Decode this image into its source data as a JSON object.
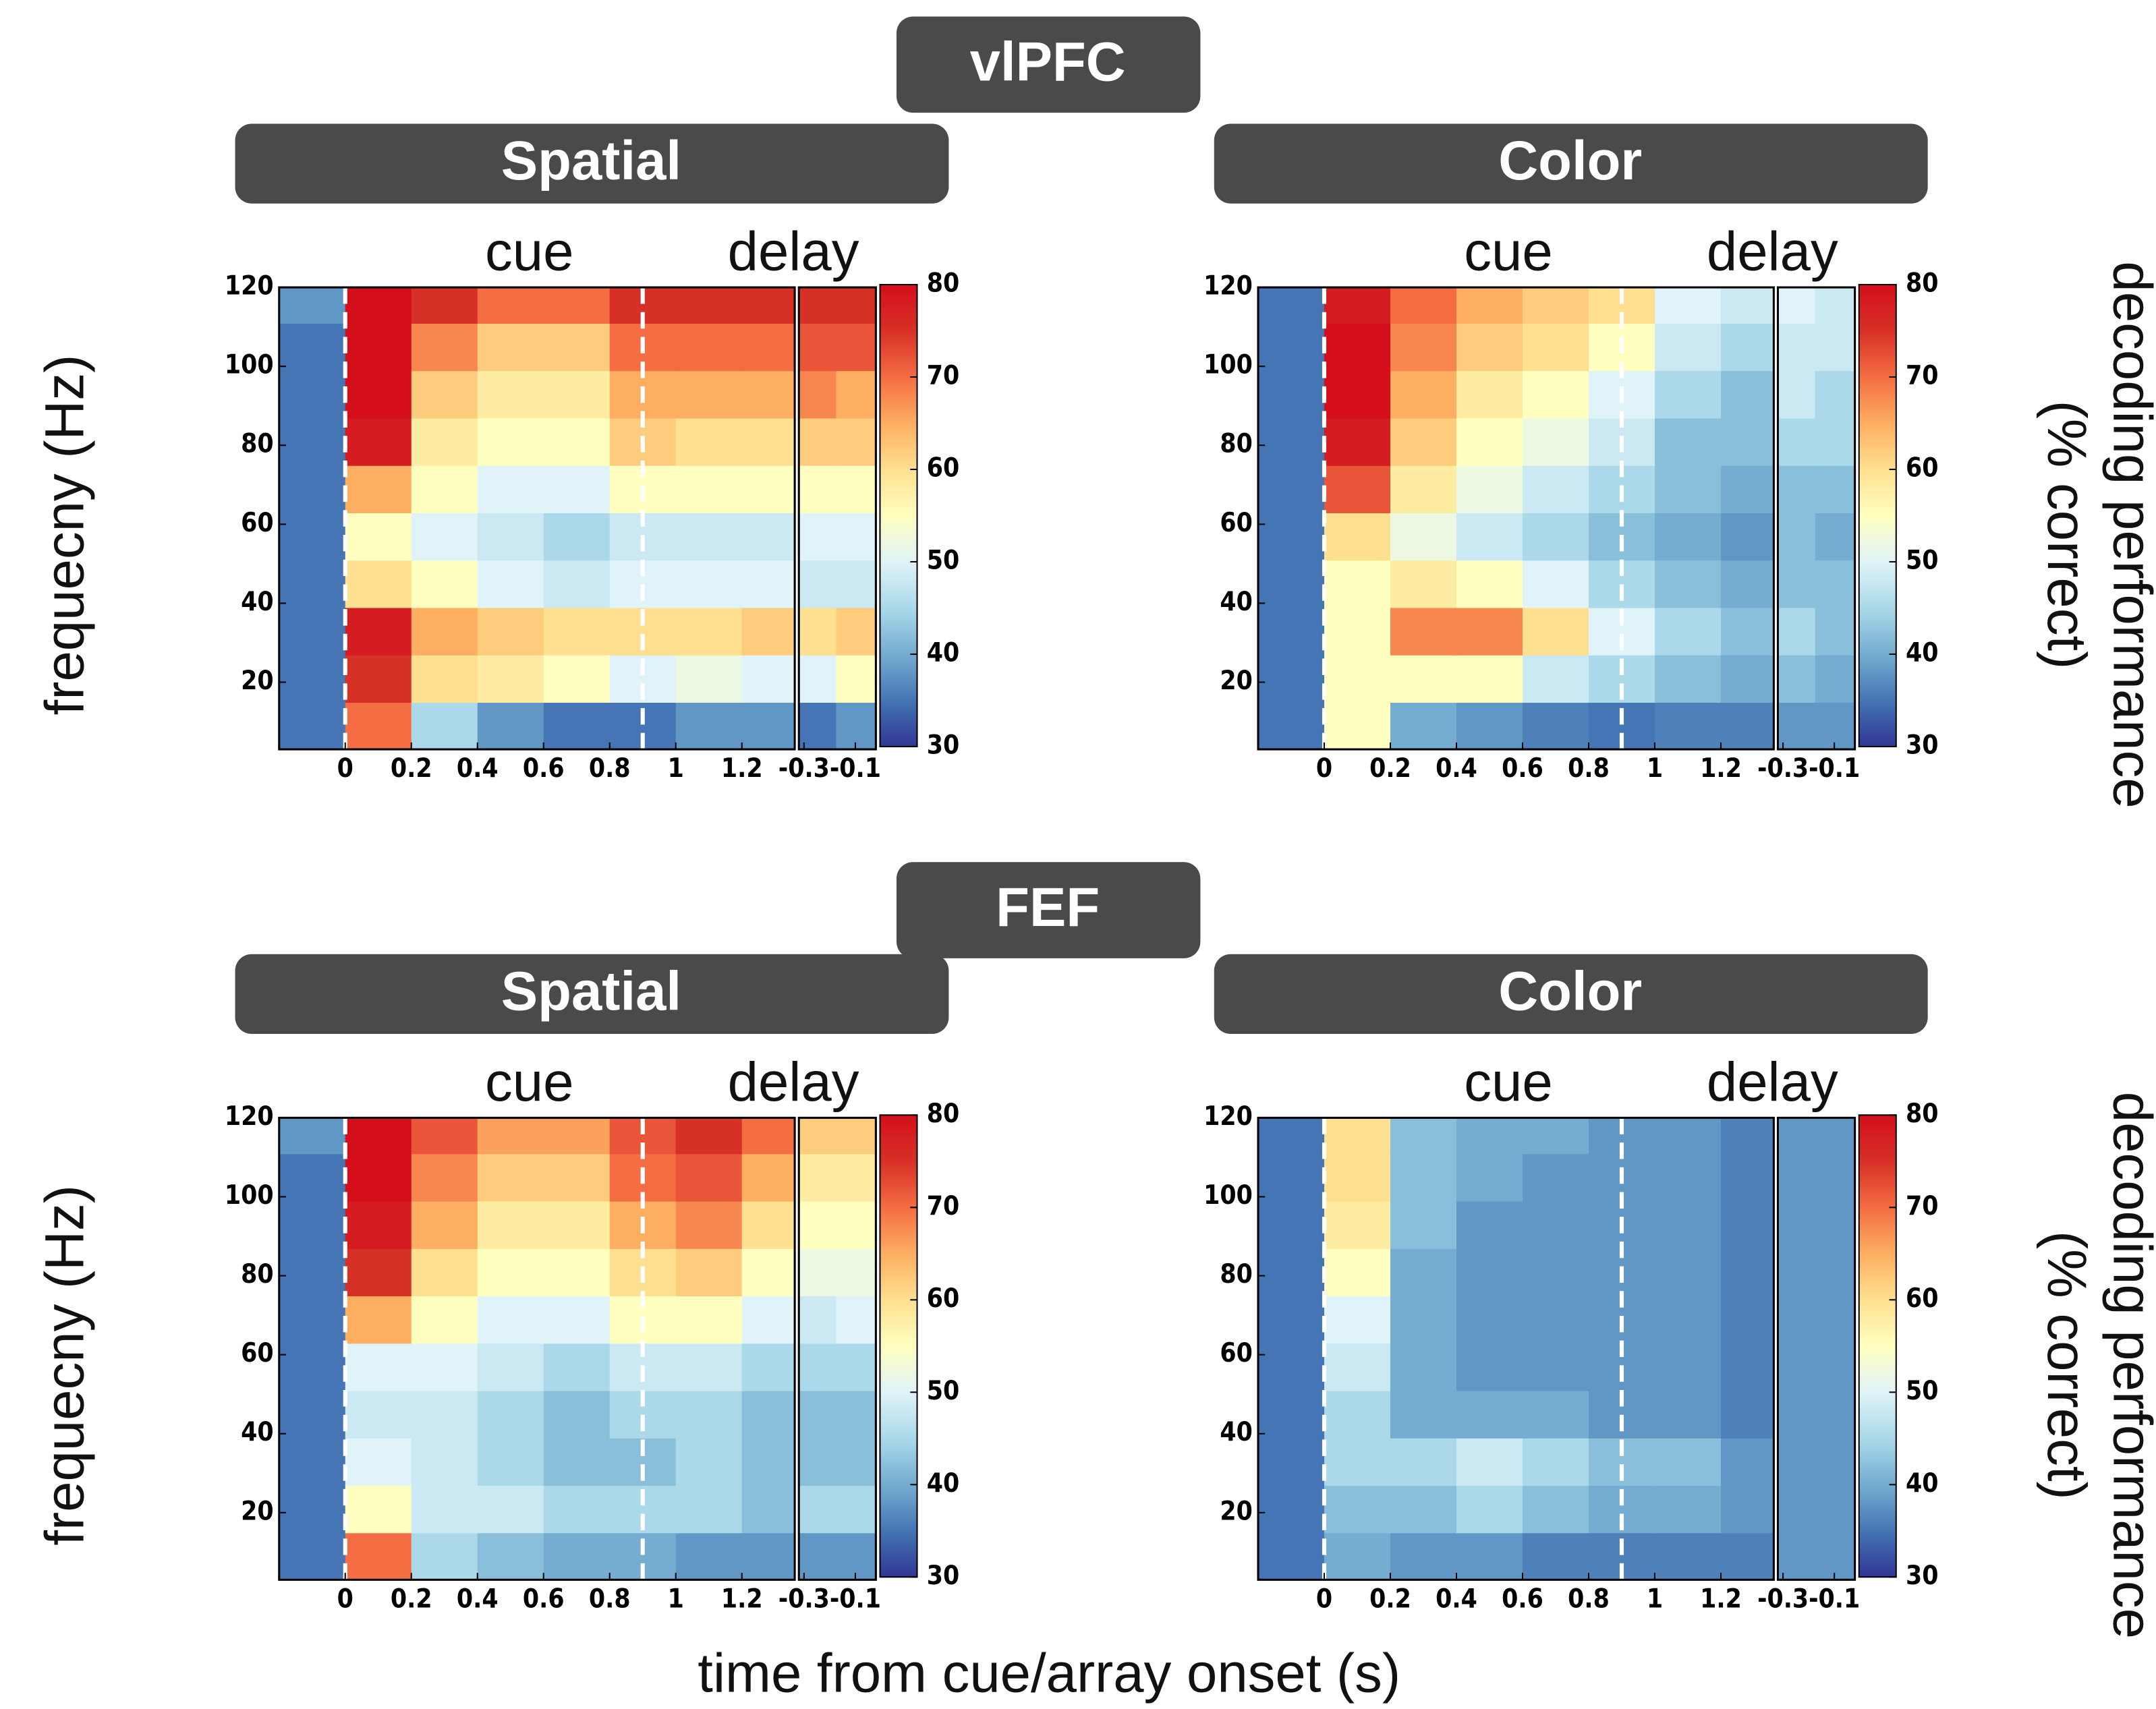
{
  "groups": [
    "vlPFC",
    "FEF"
  ],
  "xlabel": "time from cue/array onset (s)",
  "chart_data": [
    {
      "type": "heatmap",
      "title": "Spatial",
      "ylabel": "frequecny (Hz)",
      "annotations": [
        "cue",
        "delay"
      ],
      "x": [
        -0.1,
        0.1,
        0.3,
        0.5,
        0.7,
        0.9,
        1.1,
        1.3
      ],
      "x2": [
        -0.25,
        -0.1
      ],
      "y": [
        9,
        21,
        33,
        45,
        57,
        69,
        81,
        93,
        105,
        117
      ],
      "z": [
        [
          35,
          70,
          45,
          38,
          35,
          35,
          38,
          38
        ],
        [
          35,
          75,
          60,
          58,
          55,
          50,
          52,
          50
        ],
        [
          35,
          78,
          65,
          62,
          60,
          60,
          60,
          62
        ],
        [
          35,
          60,
          55,
          50,
          48,
          50,
          50,
          50
        ],
        [
          35,
          55,
          50,
          48,
          45,
          48,
          48,
          48
        ],
        [
          35,
          65,
          55,
          50,
          50,
          55,
          55,
          55
        ],
        [
          35,
          78,
          58,
          55,
          55,
          62,
          60,
          60
        ],
        [
          35,
          80,
          62,
          58,
          58,
          65,
          65,
          65
        ],
        [
          35,
          80,
          68,
          62,
          62,
          70,
          70,
          70
        ],
        [
          38,
          80,
          75,
          70,
          70,
          75,
          75,
          75
        ]
      ],
      "z2": [
        [
          35,
          38
        ],
        [
          50,
          55
        ],
        [
          60,
          62
        ],
        [
          48,
          48
        ],
        [
          50,
          50
        ],
        [
          55,
          55
        ],
        [
          62,
          62
        ],
        [
          68,
          65
        ],
        [
          72,
          72
        ],
        [
          75,
          75
        ]
      ],
      "xlim": [
        -0.2,
        1.36
      ],
      "xticks": [
        0,
        0.2,
        0.4,
        0.6,
        0.8,
        1,
        1.2
      ],
      "x2lim": [
        -0.32,
        -0.02
      ],
      "x2ticks": [
        -0.3,
        -0.1
      ],
      "ylim": [
        3,
        120
      ],
      "yticks": [
        20,
        40,
        60,
        80,
        100,
        120
      ],
      "event_lines": [
        0,
        0.9
      ],
      "clim": [
        30,
        80
      ],
      "cticks": [
        30,
        40,
        50,
        60,
        70,
        80
      ],
      "colormap": [
        "#313695",
        "#4575b4",
        "#74add1",
        "#abd9e9",
        "#e0f3f8",
        "#ffffbf",
        "#fee090",
        "#fdae61",
        "#f46d43",
        "#d73027",
        "#d40f1b"
      ]
    },
    {
      "type": "heatmap",
      "title": "Color",
      "colorbar_label": [
        "decoding performance",
        "(% correct)"
      ],
      "annotations": [
        "cue",
        "delay"
      ],
      "x": [
        -0.1,
        0.1,
        0.3,
        0.5,
        0.7,
        0.9,
        1.1,
        1.3
      ],
      "x2": [
        -0.25,
        -0.1
      ],
      "y": [
        9,
        21,
        33,
        45,
        57,
        69,
        81,
        93,
        105,
        117
      ],
      "z": [
        [
          35,
          55,
          40,
          38,
          36,
          35,
          36,
          36
        ],
        [
          35,
          55,
          55,
          55,
          48,
          45,
          42,
          40
        ],
        [
          35,
          55,
          68,
          68,
          60,
          50,
          45,
          42
        ],
        [
          35,
          55,
          58,
          55,
          50,
          45,
          42,
          40
        ],
        [
          35,
          60,
          52,
          48,
          45,
          42,
          40,
          38
        ],
        [
          35,
          72,
          58,
          52,
          48,
          45,
          42,
          40
        ],
        [
          35,
          78,
          62,
          55,
          52,
          48,
          42,
          42
        ],
        [
          35,
          80,
          65,
          58,
          55,
          50,
          45,
          42
        ],
        [
          35,
          80,
          68,
          62,
          60,
          55,
          48,
          45
        ],
        [
          35,
          78,
          70,
          65,
          62,
          60,
          50,
          48
        ]
      ],
      "z2": [
        [
          38,
          38
        ],
        [
          42,
          40
        ],
        [
          45,
          42
        ],
        [
          42,
          42
        ],
        [
          42,
          40
        ],
        [
          42,
          42
        ],
        [
          45,
          45
        ],
        [
          48,
          45
        ],
        [
          48,
          48
        ],
        [
          50,
          48
        ]
      ],
      "xlim": [
        -0.2,
        1.36
      ],
      "xticks": [
        0,
        0.2,
        0.4,
        0.6,
        0.8,
        1,
        1.2
      ],
      "x2lim": [
        -0.32,
        -0.02
      ],
      "x2ticks": [
        -0.3,
        -0.1
      ],
      "ylim": [
        3,
        120
      ],
      "yticks": [
        20,
        40,
        60,
        80,
        100,
        120
      ],
      "event_lines": [
        0,
        0.9
      ],
      "clim": [
        30,
        80
      ],
      "cticks": [
        30,
        40,
        50,
        60,
        70,
        80
      ],
      "colormap": [
        "#313695",
        "#4575b4",
        "#74add1",
        "#abd9e9",
        "#e0f3f8",
        "#ffffbf",
        "#fee090",
        "#fdae61",
        "#f46d43",
        "#d73027",
        "#d40f1b"
      ]
    },
    {
      "type": "heatmap",
      "title": "Spatial",
      "ylabel": "frequecny (Hz)",
      "annotations": [
        "cue",
        "delay"
      ],
      "x": [
        -0.1,
        0.1,
        0.3,
        0.5,
        0.7,
        0.9,
        1.1,
        1.3
      ],
      "x2": [
        -0.25,
        -0.1
      ],
      "y": [
        9,
        21,
        33,
        45,
        57,
        69,
        81,
        93,
        105,
        117
      ],
      "z": [
        [
          35,
          70,
          45,
          42,
          40,
          40,
          38,
          38
        ],
        [
          35,
          55,
          48,
          48,
          45,
          45,
          45,
          42
        ],
        [
          35,
          50,
          48,
          45,
          42,
          42,
          45,
          42
        ],
        [
          35,
          48,
          48,
          45,
          42,
          45,
          45,
          42
        ],
        [
          35,
          50,
          50,
          48,
          45,
          48,
          48,
          45
        ],
        [
          35,
          65,
          55,
          50,
          50,
          55,
          55,
          50
        ],
        [
          35,
          75,
          60,
          55,
          55,
          60,
          62,
          55
        ],
        [
          35,
          78,
          65,
          58,
          58,
          65,
          68,
          60
        ],
        [
          35,
          80,
          68,
          62,
          62,
          70,
          72,
          65
        ],
        [
          38,
          80,
          72,
          66,
          66,
          72,
          75,
          70
        ]
      ],
      "z2": [
        [
          38,
          38
        ],
        [
          45,
          45
        ],
        [
          42,
          42
        ],
        [
          42,
          42
        ],
        [
          45,
          45
        ],
        [
          48,
          50
        ],
        [
          52,
          52
        ],
        [
          55,
          55
        ],
        [
          58,
          58
        ],
        [
          62,
          62
        ]
      ],
      "xlim": [
        -0.2,
        1.36
      ],
      "xticks": [
        0,
        0.2,
        0.4,
        0.6,
        0.8,
        1,
        1.2
      ],
      "x2lim": [
        -0.32,
        -0.02
      ],
      "x2ticks": [
        -0.3,
        -0.1
      ],
      "ylim": [
        3,
        120
      ],
      "yticks": [
        20,
        40,
        60,
        80,
        100,
        120
      ],
      "event_lines": [
        0,
        0.9
      ],
      "clim": [
        30,
        80
      ],
      "cticks": [
        30,
        40,
        50,
        60,
        70,
        80
      ],
      "colormap": [
        "#313695",
        "#4575b4",
        "#74add1",
        "#abd9e9",
        "#e0f3f8",
        "#ffffbf",
        "#fee090",
        "#fdae61",
        "#f46d43",
        "#d73027",
        "#d40f1b"
      ]
    },
    {
      "type": "heatmap",
      "title": "Color",
      "colorbar_label": [
        "decoding performance",
        "(% correct)"
      ],
      "annotations": [
        "cue",
        "delay"
      ],
      "x": [
        -0.1,
        0.1,
        0.3,
        0.5,
        0.7,
        0.9,
        1.1,
        1.3
      ],
      "x2": [
        -0.25,
        -0.1
      ],
      "y": [
        9,
        21,
        33,
        45,
        57,
        69,
        81,
        93,
        105,
        117
      ],
      "z": [
        [
          35,
          40,
          38,
          38,
          36,
          36,
          36,
          36
        ],
        [
          35,
          42,
          42,
          45,
          42,
          40,
          40,
          38
        ],
        [
          35,
          45,
          45,
          48,
          45,
          42,
          42,
          38
        ],
        [
          35,
          45,
          40,
          40,
          40,
          38,
          38,
          36
        ],
        [
          35,
          48,
          40,
          38,
          38,
          38,
          38,
          36
        ],
        [
          35,
          50,
          40,
          38,
          38,
          38,
          38,
          36
        ],
        [
          35,
          55,
          40,
          38,
          38,
          38,
          38,
          36
        ],
        [
          35,
          58,
          42,
          38,
          38,
          38,
          38,
          36
        ],
        [
          35,
          60,
          42,
          40,
          38,
          38,
          38,
          36
        ],
        [
          35,
          60,
          42,
          40,
          40,
          38,
          38,
          36
        ]
      ],
      "z2": [
        [
          38,
          38
        ],
        [
          38,
          38
        ],
        [
          38,
          38
        ],
        [
          38,
          38
        ],
        [
          38,
          38
        ],
        [
          38,
          38
        ],
        [
          38,
          38
        ],
        [
          38,
          38
        ],
        [
          38,
          38
        ],
        [
          38,
          38
        ]
      ],
      "xlim": [
        -0.2,
        1.36
      ],
      "xticks": [
        0,
        0.2,
        0.4,
        0.6,
        0.8,
        1,
        1.2
      ],
      "x2lim": [
        -0.32,
        -0.02
      ],
      "x2ticks": [
        -0.3,
        -0.1
      ],
      "ylim": [
        3,
        120
      ],
      "yticks": [
        20,
        40,
        60,
        80,
        100,
        120
      ],
      "event_lines": [
        0,
        0.9
      ],
      "clim": [
        30,
        80
      ],
      "cticks": [
        30,
        40,
        50,
        60,
        70,
        80
      ],
      "colormap": [
        "#313695",
        "#4575b4",
        "#74add1",
        "#abd9e9",
        "#e0f3f8",
        "#ffffbf",
        "#fee090",
        "#fdae61",
        "#f46d43",
        "#d73027",
        "#d40f1b"
      ]
    }
  ]
}
